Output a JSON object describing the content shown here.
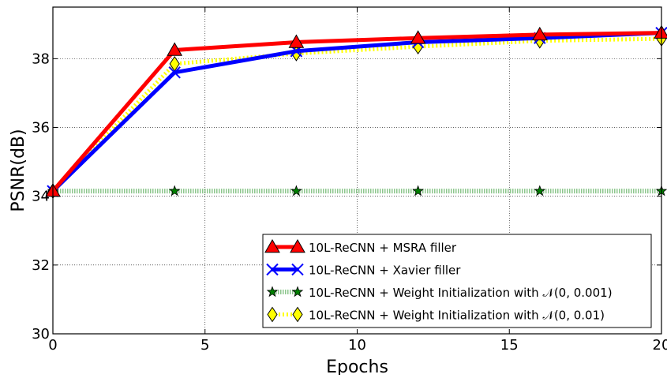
{
  "chart_data": {
    "type": "line",
    "title": "",
    "xlabel": "Epochs",
    "ylabel": "PSNR(dB)",
    "xlim": [
      0,
      20
    ],
    "ylim": [
      30,
      39.5
    ],
    "x_ticks": [
      0,
      5,
      10,
      15,
      20
    ],
    "y_ticks": [
      30,
      32,
      34,
      36,
      38
    ],
    "grid": true,
    "legend_position": "lower-right",
    "x": [
      0,
      4,
      8,
      12,
      16,
      20
    ],
    "series": [
      {
        "name": "10L-ReCNN + MSRA filler",
        "values": [
          34.15,
          38.25,
          38.48,
          38.6,
          38.7,
          38.75
        ],
        "color": "#ff0000",
        "marker": "triangle",
        "line_style": "solid"
      },
      {
        "name": "10L-ReCNN + Xavier filler",
        "values": [
          34.15,
          37.6,
          38.22,
          38.48,
          38.6,
          38.75
        ],
        "color": "#0000ff",
        "marker": "x",
        "line_style": "solid"
      },
      {
        "name": "10L-ReCNN + Weight Initialization with 𝒩(0, 0.001)",
        "values": [
          34.15,
          34.15,
          34.15,
          34.15,
          34.15,
          34.15
        ],
        "color": "#008000",
        "marker": "star",
        "line_style": "dotted"
      },
      {
        "name": "10L-ReCNN + Weight Initialization with 𝒩(0, 0.01)",
        "values": [
          34.15,
          37.85,
          38.15,
          38.35,
          38.52,
          38.58
        ],
        "color": "#ffff00",
        "marker": "diamond",
        "line_style": "dotted"
      }
    ]
  }
}
